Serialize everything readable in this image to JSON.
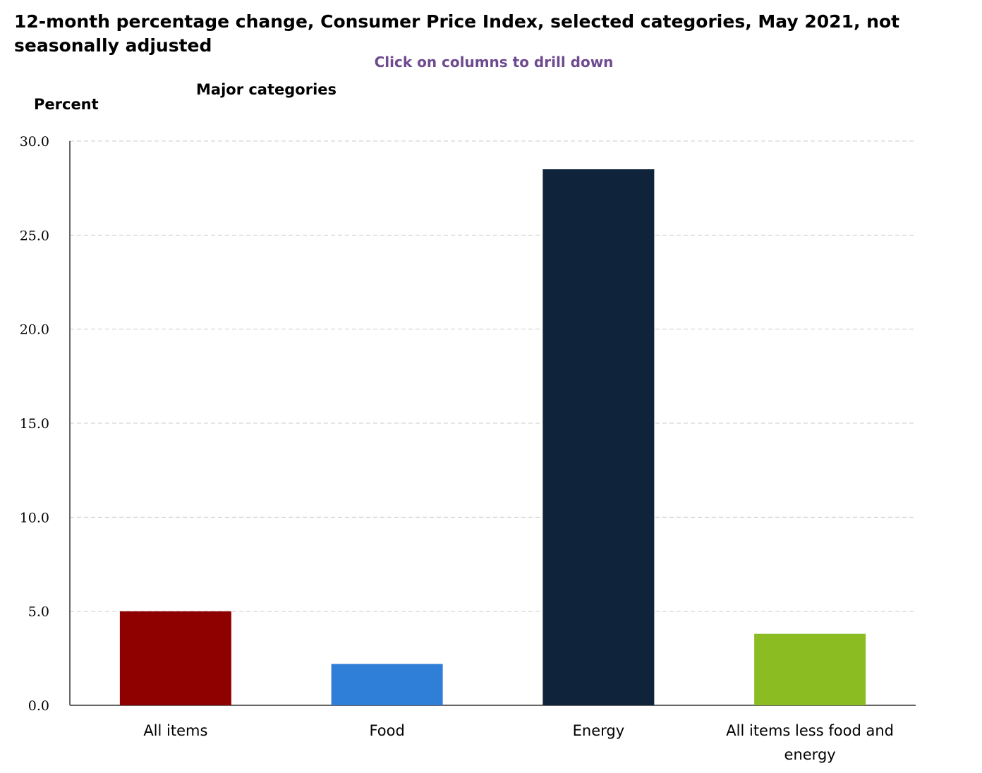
{
  "chart_data": {
    "type": "bar",
    "title": "12-month percentage change, Consumer Price Index, selected categories, May 2021, not seasonally adjusted",
    "subtitle": "Major categories",
    "hint": "Click on columns to drill down",
    "ylabel": "Percent",
    "xlabel": "",
    "ylim": [
      0,
      30
    ],
    "yticks": [
      "0.0",
      "5.0",
      "10.0",
      "15.0",
      "20.0",
      "25.0",
      "30.0"
    ],
    "grid": true,
    "categories": [
      "All items",
      "Food",
      "Energy",
      "All items less food and energy"
    ],
    "category_lines": [
      [
        "All items"
      ],
      [
        "Food"
      ],
      [
        "Energy"
      ],
      [
        "All items less food and",
        "energy"
      ]
    ],
    "values": [
      5.0,
      2.2,
      28.5,
      3.8
    ],
    "colors": [
      "#8f0000",
      "#2f7ed8",
      "#0f233b",
      "#8bbc21"
    ]
  }
}
